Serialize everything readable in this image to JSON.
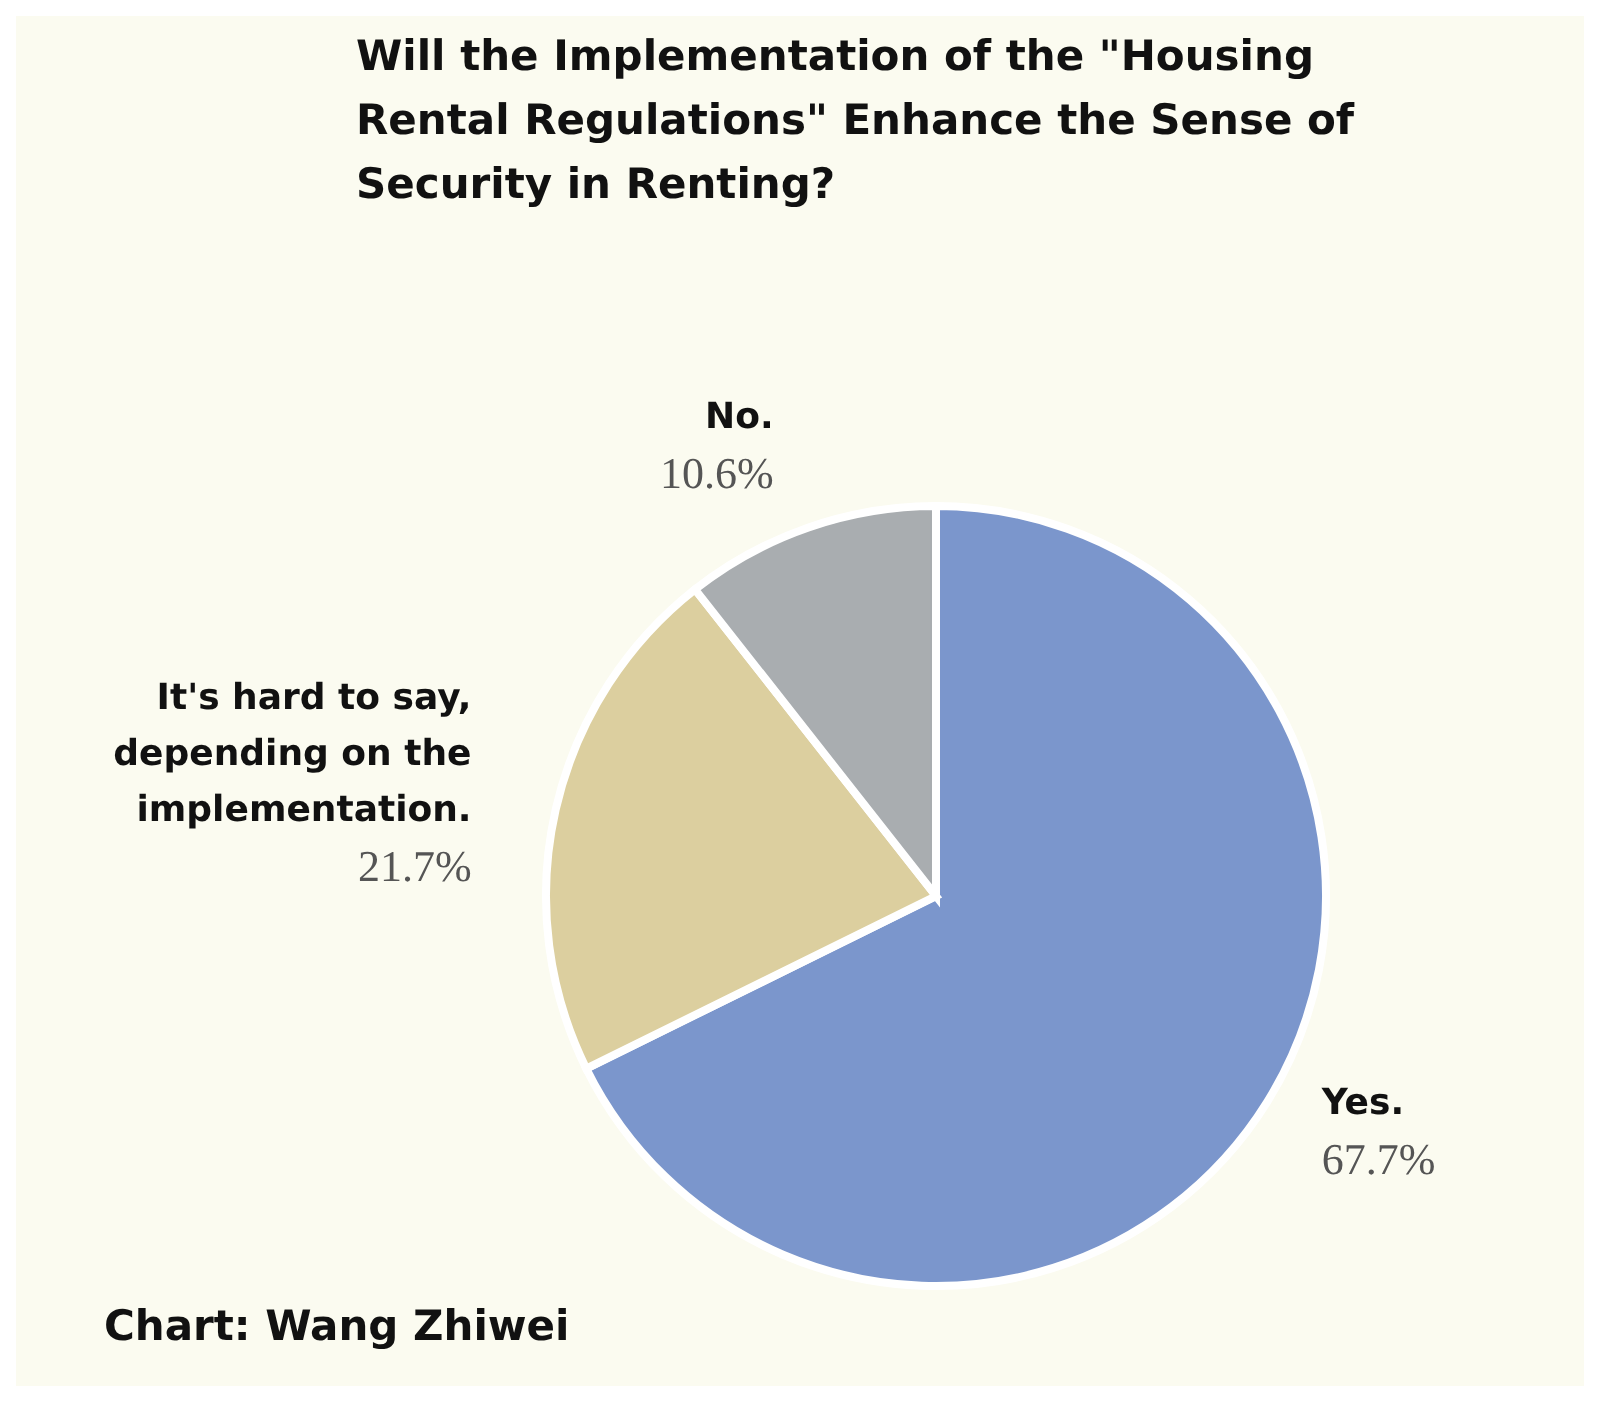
{
  "chart_data": {
    "type": "pie",
    "title": "Will the Implementation of the \"Housing Rental Regulations\" Enhance the Sense of Security in Renting?",
    "categories": [
      "Yes.",
      "It's hard to say, depending on the implementation.",
      "No."
    ],
    "values": [
      67.7,
      21.7,
      10.6
    ],
    "value_labels": [
      "67.7%",
      "21.7%",
      "10.6%"
    ],
    "colors": [
      "#7b96cc",
      "#dccf9f",
      "#a9adb0"
    ],
    "annotations": [
      "Chart: Wang Zhiwei"
    ]
  }
}
